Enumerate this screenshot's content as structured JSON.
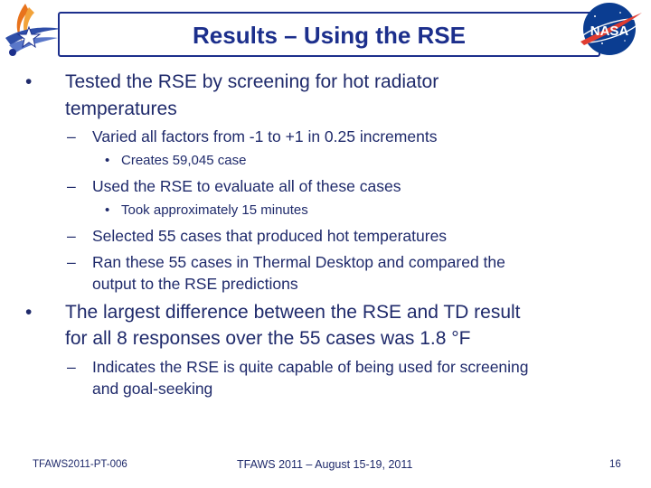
{
  "slide": {
    "title": "Results – Using the RSE",
    "bullets": [
      {
        "level": 1,
        "text_lines": [
          "Tested the RSE by screening for hot radiator",
          "temperatures"
        ]
      },
      {
        "level": 2,
        "text_lines": [
          "Varied all factors from -1 to +1 in 0.25 increments"
        ]
      },
      {
        "level": 3,
        "text_lines": [
          "Creates 59,045 case"
        ]
      },
      {
        "level": 2,
        "text_lines": [
          "Used the RSE to evaluate all of these cases"
        ]
      },
      {
        "level": 3,
        "text_lines": [
          "Took approximately 15 minutes"
        ]
      },
      {
        "level": 2,
        "text_lines": [
          "Selected 55 cases that produced hot temperatures"
        ]
      },
      {
        "level": 2,
        "text_lines": [
          "Ran these 55 cases in Thermal Desktop and compared the",
          "output to the RSE predictions"
        ]
      },
      {
        "level": 1,
        "text_lines": [
          "The largest difference between the RSE and TD result",
          "for all 8 responses over the 55 cases was 1.8 °F"
        ]
      },
      {
        "level": 2,
        "text_lines": [
          "Indicates the RSE is quite capable of being used for screening",
          "and goal-seeking"
        ]
      }
    ],
    "bullet_marks": {
      "level1": "•",
      "level2": "–",
      "level3": "•"
    }
  },
  "logos": {
    "left_icon": "tfaws-star-flame-icon",
    "right_icon": "nasa-meatball-icon",
    "right_text": "NASA"
  },
  "footer": {
    "left": "TFAWS2011-PT-006",
    "center": "TFAWS 2011 – August 15-19, 2011",
    "page_number": "16"
  },
  "colors": {
    "text": "#1f2a6b",
    "title": "#1c2f8c",
    "nasa_blue": "#0b3d91",
    "nasa_red": "#e03c31"
  }
}
